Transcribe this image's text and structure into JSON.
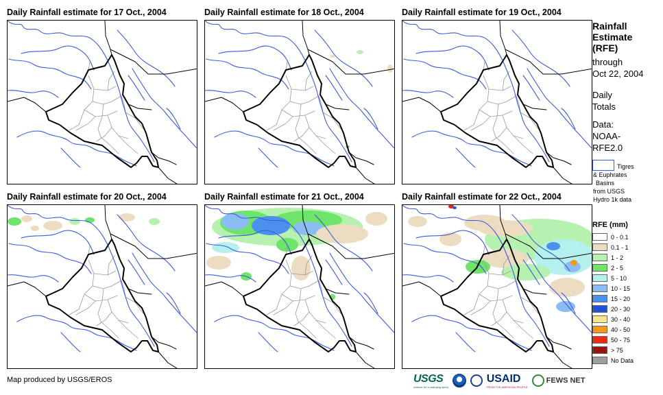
{
  "panels": [
    {
      "title": "Daily Rainfall estimate for 17 Oct., 2004",
      "precip": "none"
    },
    {
      "title": "Daily Rainfall estimate for 18 Oct., 2004",
      "precip": "trace"
    },
    {
      "title": "Daily Rainfall estimate for 19 Oct., 2004",
      "precip": "none"
    },
    {
      "title": "Daily Rainfall estimate for 20 Oct., 2004",
      "precip": "light"
    },
    {
      "title": "Daily Rainfall estimate for 21 Oct., 2004",
      "precip": "heavy_north"
    },
    {
      "title": "Daily Rainfall estimate for 22 Oct., 2004",
      "precip": "heavy_east"
    }
  ],
  "sidebar": {
    "rfe_line1": "Rainfall",
    "rfe_line2": "Estimate",
    "rfe_line3": "(RFE)",
    "through_line1": "through",
    "through_line2": "Oct 22, 2004",
    "daily_line1": "Daily",
    "daily_line2": "Totals",
    "data_line1": "Data:",
    "data_line2": "NOAA-",
    "data_line3": "RFE2.0",
    "basin_line1": "Tigres",
    "basin_line2": "& Euphrates",
    "basin_line3": "Basins",
    "basin_line4": "from USGS",
    "basin_line5": "Hydro 1k data"
  },
  "legend": {
    "title": "RFE (mm)",
    "items": [
      {
        "label": "0 - 0.1",
        "color": "#ffffff"
      },
      {
        "label": "0.1 - 1",
        "color": "#ecdcc2"
      },
      {
        "label": "1 - 2",
        "color": "#b6f1b0"
      },
      {
        "label": "2 - 5",
        "color": "#6ee46a"
      },
      {
        "label": "5 - 10",
        "color": "#b4f0ee"
      },
      {
        "label": "10 - 15",
        "color": "#8cbcf4"
      },
      {
        "label": "15 - 20",
        "color": "#4a90ec"
      },
      {
        "label": "20 - 30",
        "color": "#1f52d6"
      },
      {
        "label": "30 - 40",
        "color": "#f8e48c"
      },
      {
        "label": "40 - 50",
        "color": "#f39a1c"
      },
      {
        "label": "50 - 75",
        "color": "#ee2a12"
      },
      {
        "label": "> 75",
        "color": "#98140e"
      },
      {
        "label": "No Data",
        "color": "#9e9e9e"
      }
    ]
  },
  "footer": {
    "credit": "Map produced by USGS/EROS",
    "usgs": "USGS",
    "usgs_tagline": "science for a changing world",
    "usaid": "USAID",
    "usaid_tagline": "FROM THE AMERICAN PEOPLE",
    "fews": "FEWS NET"
  },
  "colors": {
    "river": "#3b5bd9",
    "border": "#000000",
    "province": "#9a9a9a"
  }
}
